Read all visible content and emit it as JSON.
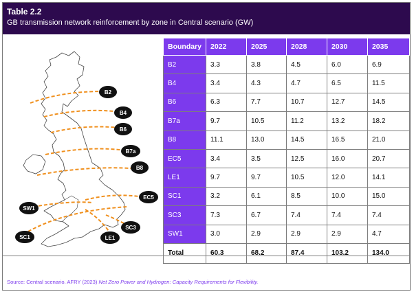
{
  "title": "Table 2.2",
  "subtitle": "GB transmission network reinforcement by zone in Central scenario (GW)",
  "columns": [
    "Boundary",
    "2022",
    "2025",
    "2028",
    "2030",
    "2035"
  ],
  "rows": [
    {
      "boundary": "B2",
      "v2022": "3.3",
      "v2025": "3.8",
      "v2028": "4.5",
      "v2030": "6.0",
      "v2035": "6.9"
    },
    {
      "boundary": "B4",
      "v2022": "3.4",
      "v2025": "4.3",
      "v2028": "4.7",
      "v2030": "6.5",
      "v2035": "11.5"
    },
    {
      "boundary": "B6",
      "v2022": "6.3",
      "v2025": "7.7",
      "v2028": "10.7",
      "v2030": "12.7",
      "v2035": "14.5"
    },
    {
      "boundary": "B7a",
      "v2022": "9.7",
      "v2025": "10.5",
      "v2028": "11.2",
      "v2030": "13.2",
      "v2035": "18.2"
    },
    {
      "boundary": "B8",
      "v2022": "11.1",
      "v2025": "13.0",
      "v2028": "14.5",
      "v2030": "16.5",
      "v2035": "21.0"
    },
    {
      "boundary": "EC5",
      "v2022": "3.4",
      "v2025": "3.5",
      "v2028": "12.5",
      "v2030": "16.0",
      "v2035": "20.7"
    },
    {
      "boundary": "LE1",
      "v2022": "9.7",
      "v2025": "9.7",
      "v2028": "10.5",
      "v2030": "12.0",
      "v2035": "14.1"
    },
    {
      "boundary": "SC1",
      "v2022": "3.2",
      "v2025": "6.1",
      "v2028": "8.5",
      "v2030": "10.0",
      "v2035": "15.0"
    },
    {
      "boundary": "SC3",
      "v2022": "7.3",
      "v2025": "6.7",
      "v2028": "7.4",
      "v2030": "7.4",
      "v2035": "7.4"
    },
    {
      "boundary": "SW1",
      "v2022": "3.0",
      "v2025": "2.9",
      "v2028": "2.9",
      "v2030": "2.9",
      "v2035": "4.7"
    }
  ],
  "total": {
    "label": "Total",
    "v2022": "60.3",
    "v2025": "68.2",
    "v2028": "87.4",
    "v2030": "103.2",
    "v2035": "134.0"
  },
  "map_labels": [
    "B2",
    "B4",
    "B6",
    "B7a",
    "B8",
    "EC5",
    "SW1",
    "SC1",
    "LE1",
    "SC3"
  ],
  "source": {
    "prefix": "Source: Central scenario. AFRY (2023) ",
    "italic": "Net Zero Power and Hydrogen: Capacity Requirements for Flexibility.",
    "suffix": ""
  },
  "colors": {
    "header_bg": "#2d0a4e",
    "accent": "#7c3aed",
    "boundary_line": "#f0901e"
  }
}
